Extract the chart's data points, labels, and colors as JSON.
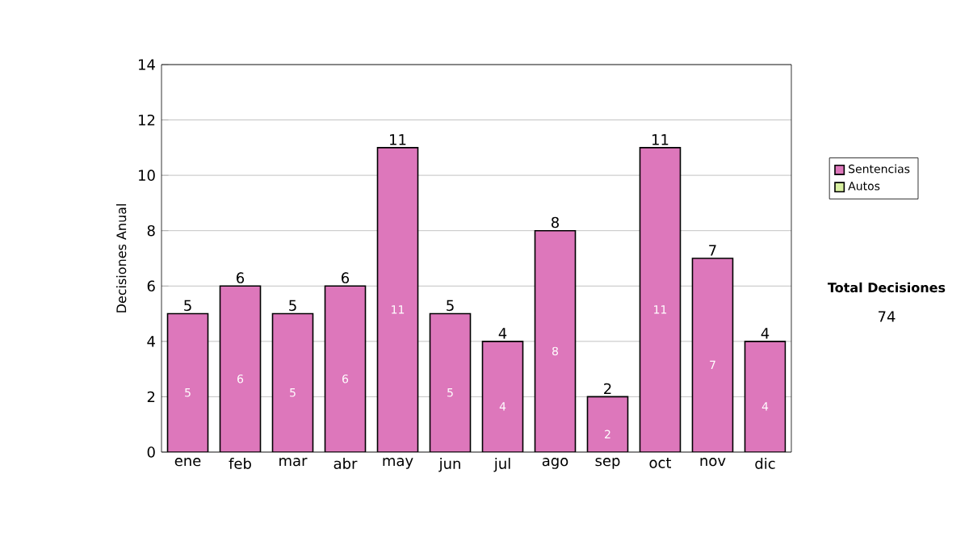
{
  "chart_data": {
    "type": "bar",
    "stacked": true,
    "ylabel": "Decisiones Anual",
    "categories": [
      "ene",
      "feb",
      "mar",
      "abr",
      "may",
      "jun",
      "jul",
      "ago",
      "sep",
      "oct",
      "nov",
      "dic"
    ],
    "series": [
      {
        "name": "Sentencias",
        "color": "#dd77bb",
        "values": [
          5,
          6,
          5,
          6,
          11,
          5,
          4,
          8,
          2,
          11,
          7,
          4
        ],
        "value_labels": [
          "5",
          "6",
          "5",
          "6",
          "11",
          "5",
          "4",
          "8",
          "2",
          "11",
          "7",
          "4"
        ]
      },
      {
        "name": "Autos",
        "color": "#d8f0a0",
        "values": [
          0,
          0,
          0,
          0,
          0,
          0,
          0,
          0,
          0,
          0,
          0,
          0
        ]
      }
    ],
    "totals": [
      "5",
      "6",
      "5",
      "6",
      "11",
      "5",
      "4",
      "8",
      "2",
      "11",
      "7",
      "4"
    ],
    "ylim": [
      0,
      14
    ],
    "yticks": [
      0,
      2,
      4,
      6,
      8,
      10,
      12,
      14
    ],
    "grid": "y",
    "legend": "right",
    "annotations": [
      "Total Decisiones",
      "74"
    ]
  }
}
